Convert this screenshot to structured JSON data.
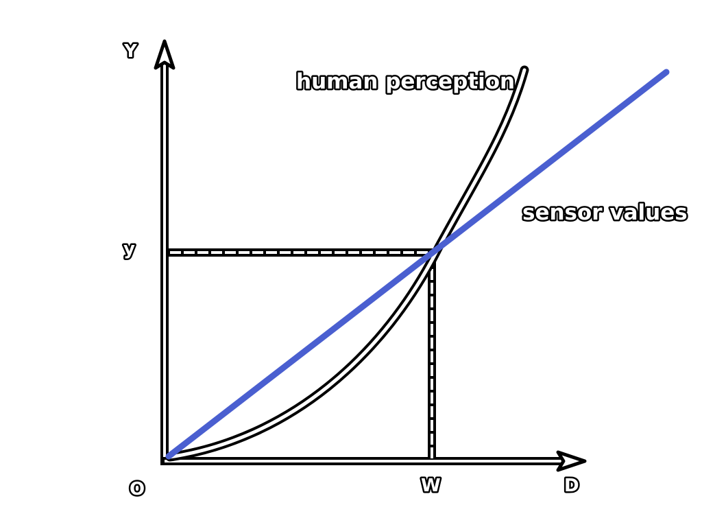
{
  "axes": {
    "origin_label": "O",
    "x_label": "D",
    "y_label": "Y",
    "x_marker_label": "W",
    "y_marker_label": "y"
  },
  "curves": {
    "perception_label": "human perception",
    "sensor_label": "sensor values"
  },
  "colors": {
    "sensor_line": "#4a5fd0",
    "axes": "#000000",
    "perception_fill": "#ffffff"
  }
}
